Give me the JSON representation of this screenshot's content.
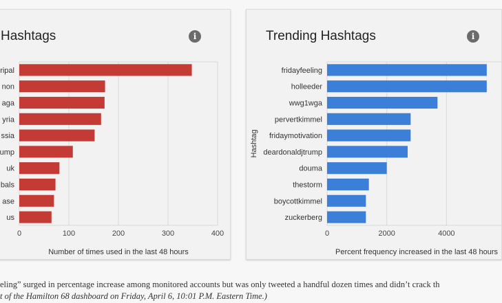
{
  "colors": {
    "left_bar": "#c43b36",
    "right_bar": "#3b7fd9",
    "grid": "#d8d8d8",
    "axis_text": "#444"
  },
  "panels": {
    "left": {
      "title": "Hashtags",
      "info_icon": "i"
    },
    "right": {
      "title": "Trending Hashtags",
      "info_icon": "i"
    }
  },
  "caption": {
    "line1": "eling” surged in percentage increase among monitored accounts but was only tweeted a handful dozen times and didn’t crack th",
    "line2": "t of the Hamilton 68 dashboard on Friday, April 6, 10:01 P.M. Eastern Time.)"
  },
  "chart_data": [
    {
      "type": "bar",
      "orientation": "horizontal",
      "title": "Hashtags",
      "categories": [
        "ripal",
        "non",
        "aga",
        "yria",
        "ssia",
        "rump",
        "uk",
        "bals",
        "ase",
        "us"
      ],
      "values": [
        348,
        173,
        172,
        165,
        152,
        108,
        81,
        73,
        70,
        65
      ],
      "xlabel": "Number of times used in the last 48 hours",
      "ylabel": "",
      "xlim": [
        0,
        400
      ],
      "xticks": [
        0,
        100,
        200,
        300,
        400
      ],
      "grid": true
    },
    {
      "type": "bar",
      "orientation": "horizontal",
      "title": "Trending Hashtags",
      "categories": [
        "fridayfeeling",
        "holleeder",
        "wwg1wga",
        "pervertkimmel",
        "fridaymotivation",
        "deardonaldjtrump",
        "douma",
        "thestorm",
        "boycottkimmel",
        "zuckerberg"
      ],
      "values": [
        5350,
        5350,
        3700,
        2800,
        2800,
        2700,
        2000,
        1400,
        1300,
        1300
      ],
      "xlabel": "Percent frequency increased in the last 48 hours",
      "ylabel": "Hashtag",
      "xlim": [
        0,
        6000
      ],
      "xticks": [
        0,
        2000,
        4000
      ],
      "grid": true
    }
  ]
}
